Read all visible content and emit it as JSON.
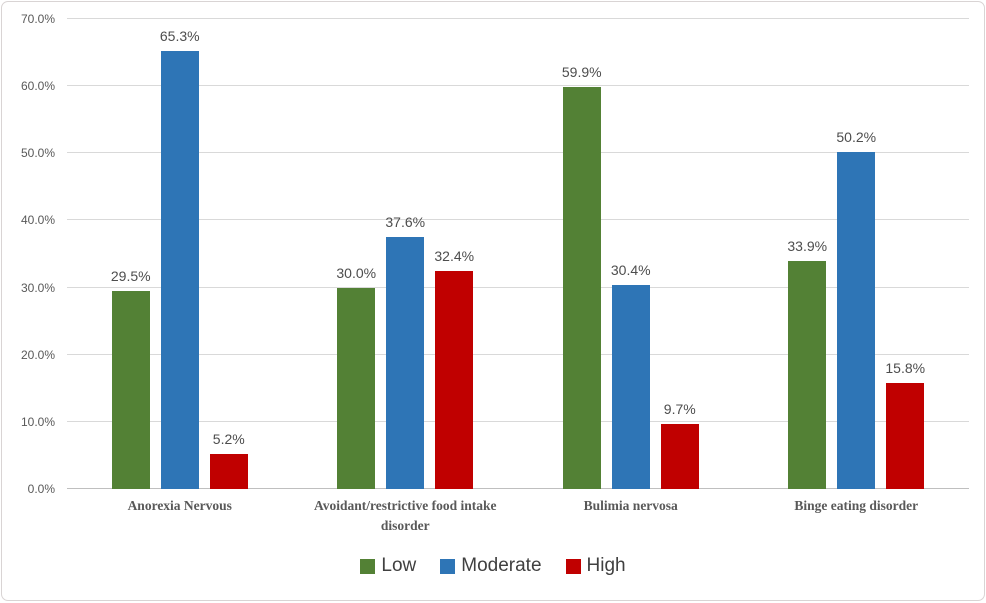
{
  "chart_data": {
    "type": "bar",
    "title": "",
    "xlabel": "",
    "ylabel": "",
    "categories": [
      "Anorexia Nervous",
      "Avoidant/restrictive food intake disorder",
      "Bulimia nervosa",
      "Binge eating disorder"
    ],
    "series": [
      {
        "name": "Low",
        "color": "#538135",
        "values": [
          29.5,
          30.0,
          59.9,
          33.9
        ]
      },
      {
        "name": "Moderate",
        "color": "#2E75B6",
        "values": [
          65.3,
          37.6,
          30.4,
          50.2
        ]
      },
      {
        "name": "High",
        "color": "#C00000",
        "values": [
          5.2,
          32.4,
          9.7,
          15.8
        ]
      }
    ],
    "y_ticks": [
      "0.0%",
      "10.0%",
      "20.0%",
      "30.0%",
      "40.0%",
      "50.0%",
      "60.0%",
      "70.0%"
    ],
    "ylim": [
      0,
      70
    ],
    "grid": true,
    "legend_position": "bottom",
    "data_label_format": "{value}%"
  }
}
